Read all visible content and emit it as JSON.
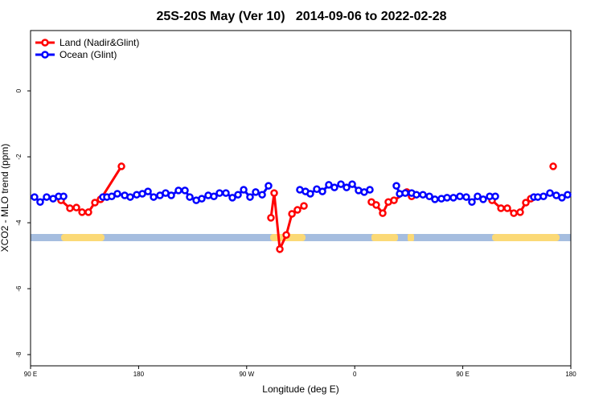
{
  "chart_data": {
    "type": "line",
    "title": "25S-20S May (Ver 10)   2014-09-06 to 2022-02-28",
    "x_label": "Longitude (deg E)",
    "y_label": "XCO2 - MLO trend (ppm)",
    "xlim": [
      90,
      540
    ],
    "ylim": [
      -8.34,
      1.83
    ],
    "xticks": [
      {
        "value": 90,
        "label": "90 E"
      },
      180,
      {
        "value": 270,
        "label": "90 W"
      },
      {
        "value": 360,
        "label": "0"
      },
      {
        "value": 450,
        "label": "90 E"
      },
      {
        "value": 540,
        "label": "180"
      }
    ],
    "yticks": [
      0,
      -2,
      -4,
      -6,
      -8
    ],
    "grid": false,
    "legend": "top-left",
    "series": [
      {
        "name": "Land (Nadir&Glint)",
        "color": "#ff0000",
        "x": [
          115.4,
          122.8,
          128.2,
          132.9,
          138.2,
          143.6,
          148.3,
          165.7,
          null,
          290.2,
          292.9,
          297.6,
          303.0,
          307.7,
          312.3,
          317.7,
          null,
          373.9,
          377.9,
          383.3,
          388.0,
          392.7,
          403.4,
          407.4,
          null,
          474.4,
          481.8,
          487.1,
          492.5,
          497.8,
          502.5,
          506.6,
          null,
          525.3
        ],
        "values": [
          -3.32,
          -3.56,
          -3.54,
          -3.68,
          -3.68,
          -3.39,
          -3.29,
          -2.29,
          null,
          -3.85,
          -3.1,
          -4.8,
          -4.37,
          -3.73,
          -3.61,
          -3.49,
          null,
          -3.37,
          -3.46,
          -3.71,
          -3.37,
          -3.32,
          -3.07,
          -3.2,
          null,
          -3.32,
          -3.56,
          -3.56,
          -3.71,
          -3.68,
          -3.39,
          -3.27,
          null,
          -2.29
        ]
      },
      {
        "name": "Ocean (Glint)",
        "color": "#0000ff",
        "x": [
          93.3,
          98.0,
          103.4,
          108.8,
          113.4,
          117.5,
          null,
          150.3,
          153.6,
          157.6,
          162.3,
          168.4,
          173.0,
          178.4,
          183.1,
          187.8,
          192.5,
          197.8,
          202.5,
          207.2,
          213.2,
          218.6,
          222.6,
          228.0,
          232.6,
          238.0,
          242.7,
          247.4,
          252.7,
          258.1,
          262.8,
          267.5,
          272.8,
          277.5,
          282.9,
          288.2,
          null,
          314.3,
          319.0,
          323.0,
          328.4,
          333.1,
          338.4,
          343.1,
          348.5,
          353.2,
          357.9,
          363.2,
          367.9,
          372.6,
          null,
          394.7,
          397.4,
          402.1,
          407.4,
          411.4,
          416.8,
          422.2,
          426.8,
          432.2,
          436.9,
          442.2,
          447.6,
          452.9,
          457.6,
          462.3,
          467.0,
          472.4,
          477.1,
          null,
          509.2,
          512.5,
          517.2,
          522.6,
          527.9,
          532.6,
          537.3
        ],
        "values": [
          -3.22,
          -3.37,
          -3.22,
          -3.27,
          -3.2,
          -3.2,
          null,
          -3.22,
          -3.22,
          -3.2,
          -3.12,
          -3.17,
          -3.22,
          -3.15,
          -3.12,
          -3.05,
          -3.22,
          -3.17,
          -3.1,
          -3.17,
          -3.02,
          -3.02,
          -3.22,
          -3.32,
          -3.27,
          -3.17,
          -3.2,
          -3.1,
          -3.1,
          -3.24,
          -3.15,
          -3.0,
          -3.22,
          -3.07,
          -3.15,
          -2.88,
          null,
          -3.0,
          -3.05,
          -3.12,
          -2.98,
          -3.05,
          -2.85,
          -2.93,
          -2.83,
          -2.93,
          -2.83,
          -3.02,
          -3.07,
          -3.0,
          null,
          -2.88,
          -3.12,
          -3.1,
          -3.1,
          -3.15,
          -3.15,
          -3.2,
          -3.29,
          -3.27,
          -3.24,
          -3.24,
          -3.2,
          -3.22,
          -3.37,
          -3.2,
          -3.29,
          -3.2,
          -3.2,
          null,
          -3.22,
          -3.22,
          -3.2,
          -3.1,
          -3.17,
          -3.24,
          -3.15
        ]
      }
    ]
  }
}
